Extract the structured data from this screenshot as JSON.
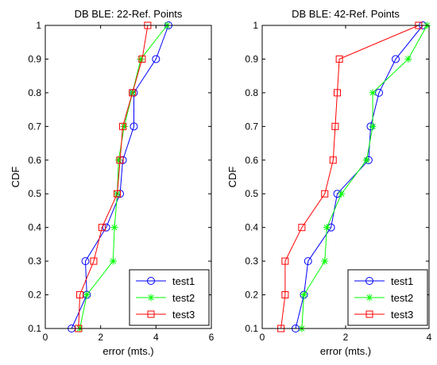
{
  "chart_data": [
    {
      "type": "line",
      "title": "DB BLE: 22-Ref. Points",
      "xlabel": "error (mts.)",
      "ylabel": "CDF",
      "xlim": [
        0,
        6
      ],
      "ylim": [
        0.1,
        1
      ],
      "xticks": [
        "0",
        "2",
        "4",
        "6"
      ],
      "yticks": [
        "0.1",
        "0.2",
        "0.3",
        "0.4",
        "0.5",
        "0.6",
        "0.7",
        "0.8",
        "0.9",
        "1"
      ],
      "grid": false,
      "legend_position": "bottom-right",
      "series": [
        {
          "name": "test1",
          "color": "#0000ff",
          "marker": "circle",
          "x": [
            0.95,
            1.5,
            1.45,
            2.2,
            2.7,
            2.8,
            3.2,
            3.2,
            4.0,
            4.45
          ],
          "y": [
            0.1,
            0.2,
            0.3,
            0.4,
            0.5,
            0.6,
            0.7,
            0.8,
            0.9,
            1.0
          ]
        },
        {
          "name": "test2",
          "color": "#00ff00",
          "marker": "star",
          "x": [
            1.25,
            1.5,
            2.45,
            2.5,
            2.6,
            2.65,
            2.85,
            3.15,
            3.45,
            4.4
          ],
          "y": [
            0.1,
            0.2,
            0.3,
            0.4,
            0.5,
            0.6,
            0.7,
            0.8,
            0.9,
            1.0
          ]
        },
        {
          "name": "test3",
          "color": "#ff0000",
          "marker": "square",
          "x": [
            1.2,
            1.25,
            1.75,
            2.05,
            2.6,
            2.7,
            2.8,
            3.15,
            3.5,
            3.7
          ],
          "y": [
            0.1,
            0.2,
            0.3,
            0.4,
            0.5,
            0.6,
            0.7,
            0.8,
            0.9,
            1.0
          ]
        }
      ]
    },
    {
      "type": "line",
      "title": "DB BLE: 42-Ref. Points",
      "xlabel": "error (mts.)",
      "ylabel": "CDF",
      "xlim": [
        0,
        4
      ],
      "ylim": [
        0.1,
        1
      ],
      "xticks": [
        "0",
        "2",
        "4"
      ],
      "yticks": [
        "0.1",
        "0.2",
        "0.3",
        "0.4",
        "0.5",
        "0.6",
        "0.7",
        "0.8",
        "0.9",
        "1"
      ],
      "grid": false,
      "legend_position": "bottom-right",
      "series": [
        {
          "name": "test1",
          "color": "#0000ff",
          "marker": "circle",
          "x": [
            0.8,
            1.0,
            1.1,
            1.65,
            1.8,
            2.55,
            2.6,
            2.8,
            3.2,
            3.85
          ],
          "y": [
            0.1,
            0.2,
            0.3,
            0.4,
            0.5,
            0.6,
            0.7,
            0.8,
            0.9,
            1.0
          ]
        },
        {
          "name": "test2",
          "color": "#00ff00",
          "marker": "star",
          "x": [
            0.95,
            1.0,
            1.5,
            1.55,
            1.9,
            2.5,
            2.65,
            2.65,
            3.5,
            3.95
          ],
          "y": [
            0.1,
            0.2,
            0.3,
            0.4,
            0.5,
            0.6,
            0.7,
            0.8,
            0.9,
            1.0
          ]
        },
        {
          "name": "test3",
          "color": "#ff0000",
          "marker": "square",
          "x": [
            0.45,
            0.55,
            0.55,
            0.95,
            1.5,
            1.7,
            1.75,
            1.8,
            1.85,
            3.75
          ],
          "y": [
            0.1,
            0.2,
            0.3,
            0.4,
            0.5,
            0.6,
            0.7,
            0.8,
            0.9,
            1.0
          ]
        }
      ]
    }
  ]
}
